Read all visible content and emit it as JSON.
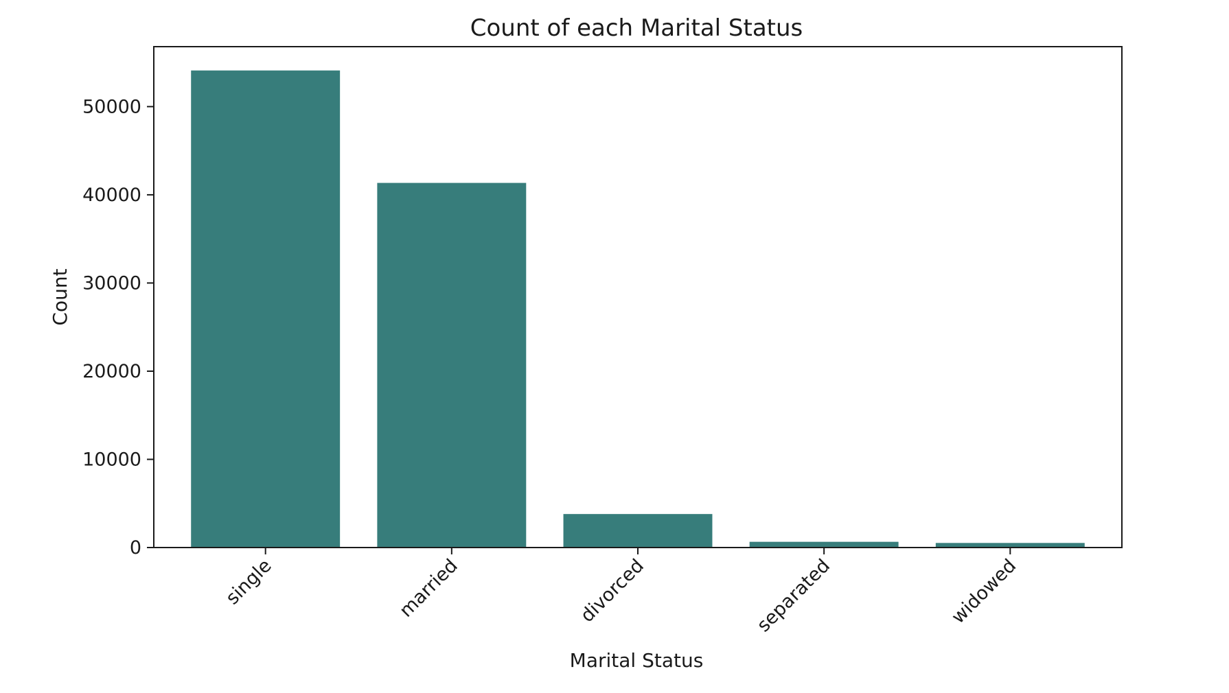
{
  "chart_data": {
    "type": "bar",
    "title": "Count of each Marital Status",
    "xlabel": "Marital Status",
    "ylabel": "Count",
    "categories": [
      "single",
      "married",
      "divorced",
      "separated",
      "widowed"
    ],
    "values": [
      54100,
      41350,
      3800,
      650,
      520
    ],
    "yticks": [
      0,
      10000,
      20000,
      30000,
      40000,
      50000
    ],
    "ytick_labels": [
      "0",
      "10000",
      "20000",
      "30000",
      "40000",
      "50000"
    ],
    "ylim": [
      0,
      56800
    ],
    "grid": false,
    "legend": "none",
    "bar_color": "#377d7b",
    "xtick_rotation_deg": 45
  }
}
